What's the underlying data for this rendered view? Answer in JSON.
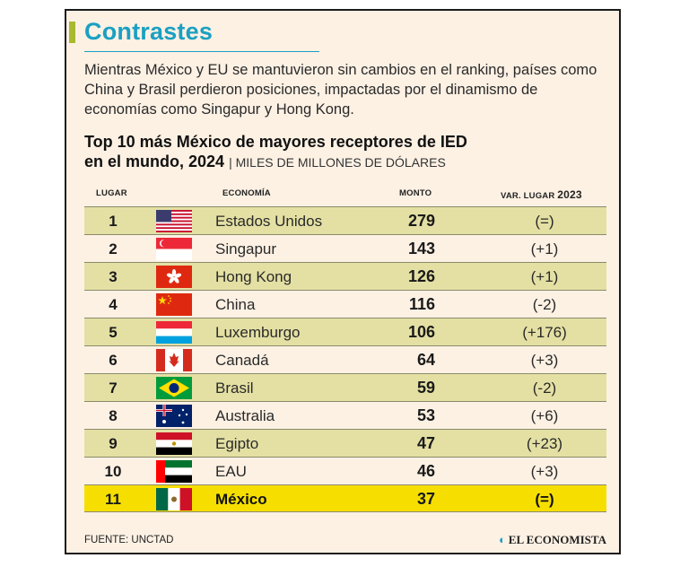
{
  "header": {
    "title": "Contrastes",
    "intro": "Mientras México y EU se mantuvieron sin cambios en el ranking, países como China y Brasil perdieron posiciones, impactadas por el dinamismo de economías como Singapur y Hong Kong."
  },
  "chart_data": {
    "type": "table",
    "title_line1": "Top 10 más México de mayores receptores de IED",
    "title_line2": "en el mundo, 2024",
    "unit": "MILES DE MILLONES DE DÓLARES",
    "columns": {
      "rank": "LUGAR",
      "economy": "ECONOMÍA",
      "amount": "MONTO",
      "variation": "VAR. LUGAR",
      "variation_year": "2023"
    },
    "rows": [
      {
        "rank": "1",
        "economy": "Estados Unidos",
        "amount": 279,
        "variation": "(=)",
        "flag": "us-flag"
      },
      {
        "rank": "2",
        "economy": "Singapur",
        "amount": 143,
        "variation": "(+1)",
        "flag": "singapore-flag"
      },
      {
        "rank": "3",
        "economy": "Hong Kong",
        "amount": 126,
        "variation": "(+1)",
        "flag": "hong-kong-flag"
      },
      {
        "rank": "4",
        "economy": "China",
        "amount": 116,
        "variation": "(-2)",
        "flag": "china-flag"
      },
      {
        "rank": "5",
        "economy": "Luxemburgo",
        "amount": 106,
        "variation": "(+176)",
        "flag": "luxembourg-flag"
      },
      {
        "rank": "6",
        "economy": "Canadá",
        "amount": 64,
        "variation": "(+3)",
        "flag": "canada-flag"
      },
      {
        "rank": "7",
        "economy": "Brasil",
        "amount": 59,
        "variation": "(-2)",
        "flag": "brazil-flag"
      },
      {
        "rank": "8",
        "economy": "Australia",
        "amount": 53,
        "variation": "(+6)",
        "flag": "australia-flag"
      },
      {
        "rank": "9",
        "economy": "Egipto",
        "amount": 47,
        "variation": "(+23)",
        "flag": "egypt-flag"
      },
      {
        "rank": "10",
        "economy": "EAU",
        "amount": 46,
        "variation": "(+3)",
        "flag": "uae-flag"
      },
      {
        "rank": "11",
        "economy": "México",
        "amount": 37,
        "variation": "(=)",
        "flag": "mexico-flag"
      }
    ]
  },
  "footer": {
    "source": "FUENTE: UNCTAD",
    "brand": "EL ECONOMISTA"
  },
  "colors": {
    "title": "#1aa0c2",
    "accent_bar": "#a8b92e",
    "card_bg": "#fdf1e4",
    "alt_row": "#e4e0a4",
    "highlight_row": "#f6df00"
  }
}
